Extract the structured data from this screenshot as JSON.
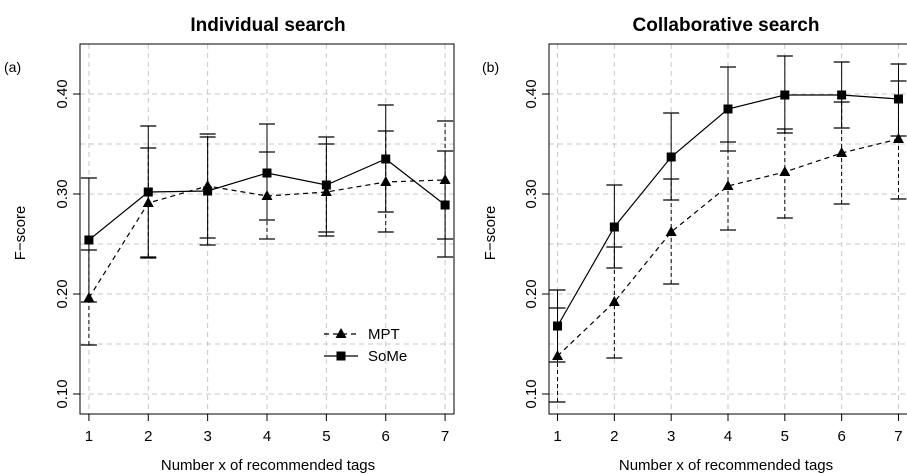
{
  "chart_data": [
    {
      "type": "line",
      "panel_label": "(a)",
      "title": "Individual search",
      "xlabel": "Number x of recommended tags",
      "ylabel": "F−score",
      "xlim": [
        0.85,
        7.15
      ],
      "ylim": [
        0.08,
        0.45
      ],
      "grid": true,
      "x": [
        1,
        2,
        3,
        4,
        5,
        6,
        7
      ],
      "x_tick_labels": [
        "1",
        "2",
        "3",
        "4",
        "5",
        "6",
        "7"
      ],
      "y_ticks": [
        0.1,
        0.2,
        0.3,
        0.4
      ],
      "y_tick_labels": [
        "0.10",
        "0.20",
        "0.30",
        "0.40"
      ],
      "legend": {
        "position": "bottom-right",
        "entries": [
          "MPT",
          "SoMe"
        ]
      },
      "series": [
        {
          "name": "MPT",
          "marker": "triangle",
          "line_style": "dashed",
          "values": [
            0.196,
            0.291,
            0.308,
            0.298,
            0.302,
            0.312,
            0.314
          ],
          "lower": [
            0.149,
            0.237,
            0.256,
            0.255,
            0.258,
            0.262,
            0.255
          ],
          "upper": [
            0.244,
            0.346,
            0.36,
            0.342,
            0.35,
            0.363,
            0.373
          ]
        },
        {
          "name": "SoMe",
          "marker": "square",
          "line_style": "solid",
          "values": [
            0.254,
            0.302,
            0.303,
            0.321,
            0.309,
            0.335,
            0.289
          ],
          "lower": [
            0.192,
            0.236,
            0.249,
            0.274,
            0.262,
            0.282,
            0.237
          ],
          "upper": [
            0.316,
            0.368,
            0.357,
            0.37,
            0.357,
            0.389,
            0.343
          ]
        }
      ]
    },
    {
      "type": "line",
      "panel_label": "(b)",
      "title": "Collaborative search",
      "xlabel": "Number x of recommended tags",
      "ylabel": "F−score",
      "xlim": [
        0.85,
        7.15
      ],
      "ylim": [
        0.08,
        0.45
      ],
      "grid": true,
      "x": [
        1,
        2,
        3,
        4,
        5,
        6,
        7
      ],
      "x_tick_labels": [
        "1",
        "2",
        "3",
        "4",
        "5",
        "6",
        "7"
      ],
      "y_ticks": [
        0.1,
        0.2,
        0.3,
        0.4
      ],
      "y_tick_labels": [
        "0.10",
        "0.20",
        "0.30",
        "0.40"
      ],
      "series": [
        {
          "name": "MPT",
          "marker": "triangle",
          "line_style": "dashed",
          "values": [
            0.138,
            0.192,
            0.262,
            0.308,
            0.322,
            0.341,
            0.355
          ],
          "lower": [
            0.092,
            0.136,
            0.21,
            0.264,
            0.276,
            0.29,
            0.295
          ],
          "upper": [
            0.186,
            0.247,
            0.315,
            0.352,
            0.365,
            0.392,
            0.413
          ]
        },
        {
          "name": "SoMe",
          "marker": "square",
          "line_style": "solid",
          "values": [
            0.168,
            0.267,
            0.337,
            0.385,
            0.399,
            0.399,
            0.395
          ],
          "lower": [
            0.132,
            0.226,
            0.294,
            0.343,
            0.361,
            0.366,
            0.358
          ],
          "upper": [
            0.204,
            0.309,
            0.381,
            0.427,
            0.438,
            0.432,
            0.43
          ]
        }
      ]
    }
  ]
}
